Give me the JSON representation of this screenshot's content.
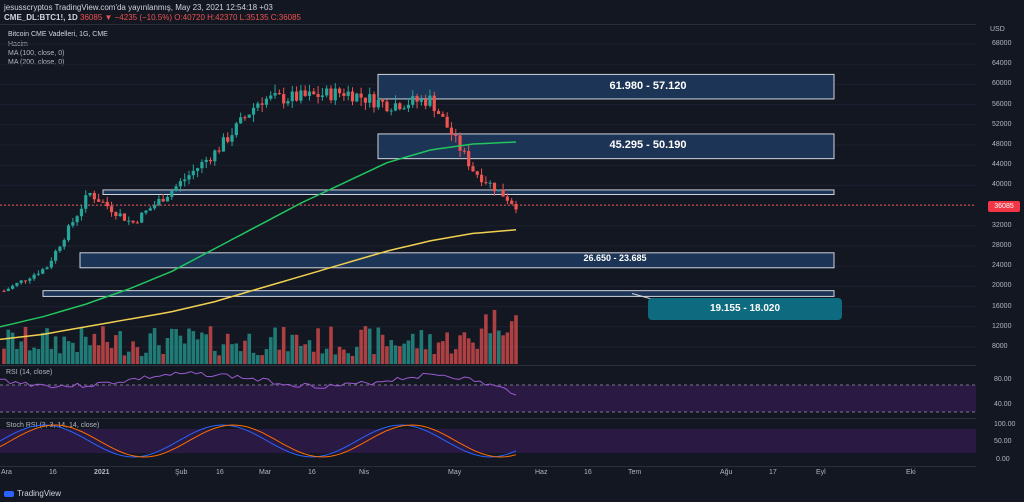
{
  "header": {
    "line1": "jesusscryptos TradingView.com'da yayınlanmış, May 23, 2021 12:54:18 +03",
    "symbol": "CME_DL:BTC1!, 1D",
    "change": "36085 ▼ −4235 (−10.5%)",
    "ohlc": "O:40720 H:42370 L:35135 C:36085"
  },
  "legend": {
    "title": "Bitcoin CME Vadelleri, 1G, CME",
    "volume": "Hacim",
    "ma100": "MA (100, close, 0)",
    "ma200": "MA (200, close, 0)"
  },
  "price_axis": {
    "currency": "USD",
    "ticks": [
      "68000",
      "64000",
      "60000",
      "56000",
      "52000",
      "48000",
      "44000",
      "40000",
      "36000",
      "32000",
      "28000",
      "24000",
      "20000",
      "16000",
      "12000",
      "8000"
    ],
    "current": "36085"
  },
  "time_axis": [
    "Ara",
    "16",
    "2021",
    "Şub",
    "16",
    "Mar",
    "16",
    "Nis",
    "May",
    "Haz",
    "16",
    "Tem",
    "Ağu",
    "17",
    "Eyl",
    "Eki"
  ],
  "zones": [
    {
      "label": "61.980 - 57.120",
      "low": 57120,
      "high": 61980
    },
    {
      "label": "45.295 - 50.190",
      "low": 45295,
      "high": 50190
    },
    {
      "label": "",
      "low": 38200,
      "high": 39100
    },
    {
      "label": "26.650 - 23.685",
      "low": 23685,
      "high": 26650
    },
    {
      "label": "19.155 - 18.020",
      "low": 18020,
      "high": 19155
    }
  ],
  "rsi": {
    "label": "RSI (14, close)",
    "ticks": [
      "80.00",
      "40.00"
    ]
  },
  "stoch": {
    "label": "Stoch RSI (3, 3, 14, 14, close)",
    "ticks": [
      "100.00",
      "50.00",
      "0.00"
    ]
  },
  "brand": "TradingView",
  "colors": {
    "up": "#26a69a",
    "down": "#ef5350",
    "ma100": "#22c55e",
    "ma200": "#f0d050",
    "zone": "#1e3a5f",
    "accent": "#0e6b7f"
  },
  "chart_data": {
    "type": "candlestick",
    "title": "Bitcoin CME Vadelleri, 1G, CME",
    "ylim": [
      4000,
      72000
    ],
    "x": [
      "Dec 14",
      "Dec 28",
      "Jan 11",
      "Jan 25",
      "Feb 8",
      "Feb 22",
      "Mar 8",
      "Mar 22",
      "Apr 5",
      "Apr 19",
      "May 3",
      "May 17",
      "May 21"
    ],
    "close_approx": [
      19100,
      23800,
      38500,
      32500,
      39500,
      47000,
      57000,
      57500,
      58500,
      56000,
      57000,
      43000,
      36085
    ],
    "ma100_approx": [
      12000,
      14000,
      16500,
      19500,
      23000,
      27500,
      32000,
      36500,
      40500,
      44500,
      47000,
      48200,
      48600
    ],
    "ma200_approx": [
      9500,
      10500,
      12000,
      13500,
      15000,
      17000,
      19500,
      22000,
      24500,
      27000,
      29000,
      30500,
      31200
    ]
  }
}
